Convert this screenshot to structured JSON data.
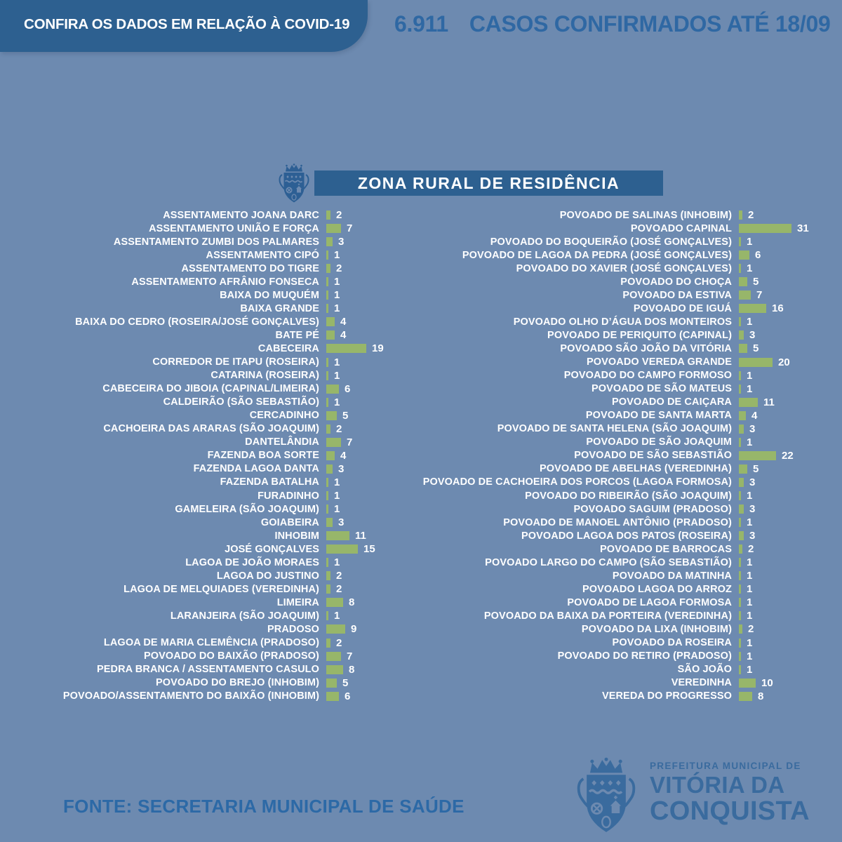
{
  "banner": {
    "text": "CONFIRA OS DADOS EM RELAÇÃO À COVID-19"
  },
  "confirmed": {
    "count": "6.911",
    "label": "CASOS CONFIRMADOS ATÉ 18/09"
  },
  "section_title": "ZONA RURAL DE RESIDÊNCIA",
  "footer": {
    "source": "FONTE: SECRETARIA MUNICIPAL DE SAÚDE",
    "logo": {
      "line1": "PREFEITURA MUNICIPAL DE",
      "line2": "VITÓRIA DA",
      "line3": "CONQUISTA"
    }
  },
  "icons": {
    "section_crest": "coat-of-arms-icon",
    "footer_crest": "coat-of-arms-icon"
  },
  "colors": {
    "background": "#6d8ab0",
    "panel_blue": "#2d6090",
    "headline_blue": "#2f68a3",
    "bar_green": "#97b66a",
    "text_white": "#ffffff",
    "logo_blue": "#3a6b9e"
  },
  "chart_data": {
    "type": "bar",
    "orientation": "horizontal",
    "title": "ZONA RURAL DE RESIDÊNCIA",
    "grid": false,
    "legend": false,
    "columns": [
      {
        "rows": [
          {
            "label": "ASSENTAMENTO JOANA DARC",
            "value": 2
          },
          {
            "label": "ASSENTAMENTO UNIÃO E FORÇA",
            "value": 7
          },
          {
            "label": "ASSENTAMENTO ZUMBI DOS PALMARES",
            "value": 3
          },
          {
            "label": "ASSENTAMENTO CIPÓ",
            "value": 1
          },
          {
            "label": "ASSENTAMENTO DO TIGRE",
            "value": 2
          },
          {
            "label": "ASSENTAMENTO AFRÂNIO FONSECA",
            "value": 1
          },
          {
            "label": "BAIXA DO MUQUÉM",
            "value": 1
          },
          {
            "label": "BAIXA GRANDE",
            "value": 1
          },
          {
            "label": "BAIXA DO CEDRO (ROSEIRA/JOSÉ GONÇALVES)",
            "value": 4
          },
          {
            "label": "BATE PÉ",
            "value": 4
          },
          {
            "label": "CABECEIRA",
            "value": 19
          },
          {
            "label": "CORREDOR DE ITAPU (ROSEIRA)",
            "value": 1
          },
          {
            "label": "CATARINA (ROSEIRA)",
            "value": 1
          },
          {
            "label": "CABECEIRA DO JIBOIA (CAPINAL/LIMEIRA)",
            "value": 6
          },
          {
            "label": "CALDEIRÃO (SÃO SEBASTIÃO)",
            "value": 1
          },
          {
            "label": "CERCADINHO",
            "value": 5
          },
          {
            "label": "CACHOEIRA DAS ARARAS (SÃO JOAQUIM)",
            "value": 2
          },
          {
            "label": "DANTELÂNDIA",
            "value": 7
          },
          {
            "label": "FAZENDA BOA SORTE",
            "value": 4
          },
          {
            "label": "FAZENDA LAGOA DANTA",
            "value": 3
          },
          {
            "label": "FAZENDA BATALHA",
            "value": 1
          },
          {
            "label": "FURADINHO",
            "value": 1
          },
          {
            "label": "GAMELEIRA (SÃO JOAQUIM)",
            "value": 1
          },
          {
            "label": "GOIABEIRA",
            "value": 3
          },
          {
            "label": "INHOBIM",
            "value": 11
          },
          {
            "label": "JOSÉ GONÇALVES",
            "value": 15
          },
          {
            "label": "LAGOA DE JOÃO MORAES",
            "value": 1
          },
          {
            "label": "LAGOA DO JUSTINO",
            "value": 2
          },
          {
            "label": "LAGOA DE MELQUIADES (VEREDINHA)",
            "value": 2
          },
          {
            "label": "LIMEIRA",
            "value": 8
          },
          {
            "label": "LARANJEIRA (SÃO JOAQUIM)",
            "value": 1
          },
          {
            "label": "PRADOSO",
            "value": 9
          },
          {
            "label": "LAGOA DE MARIA CLEMÊNCIA (PRADOSO)",
            "value": 2
          },
          {
            "label": "POVOADO DO BAIXÃO (PRADOSO)",
            "value": 7
          },
          {
            "label": "PEDRA BRANCA / ASSENTAMENTO CASULO",
            "value": 8
          },
          {
            "label": "POVOADO DO BREJO (INHOBIM)",
            "value": 5
          },
          {
            "label": "POVOADO/ASSENTAMENTO DO BAIXÃO (INHOBIM)",
            "value": 6
          }
        ]
      },
      {
        "rows": [
          {
            "label": "POVOADO DE SALINAS (INHOBIM)",
            "value": 2
          },
          {
            "label": "POVOADO CAPINAL",
            "value": 31
          },
          {
            "label": "POVOADO DO BOQUEIRÃO (JOSÉ GONÇALVES)",
            "value": 1
          },
          {
            "label": "POVOADO DE LAGOA DA PEDRA (JOSÉ GONÇALVES)",
            "value": 6
          },
          {
            "label": "POVOADO DO XAVIER (JOSÉ GONÇALVES)",
            "value": 1
          },
          {
            "label": "POVOADO DO CHOÇA",
            "value": 5
          },
          {
            "label": "POVOADO DA ESTIVA",
            "value": 7
          },
          {
            "label": "POVOADO DE IGUÁ",
            "value": 16
          },
          {
            "label": "POVOADO OLHO D’ÁGUA DOS MONTEIROS",
            "value": 1
          },
          {
            "label": "POVOADO DE PERIQUITO (CAPINAL)",
            "value": 3
          },
          {
            "label": "POVOADO SÃO JOÃO DA VITÓRIA",
            "value": 5
          },
          {
            "label": "POVOADO VEREDA GRANDE",
            "value": 20
          },
          {
            "label": "POVOADO DO CAMPO FORMOSO",
            "value": 1
          },
          {
            "label": "POVOADO DE SÃO MATEUS",
            "value": 1
          },
          {
            "label": "POVOADO DE CAIÇARA",
            "value": 11
          },
          {
            "label": "POVOADO DE SANTA MARTA",
            "value": 4
          },
          {
            "label": "POVOADO DE SANTA HELENA (SÃO JOAQUIM)",
            "value": 3
          },
          {
            "label": "POVOADO DE SÃO JOAQUIM",
            "value": 1
          },
          {
            "label": "POVOADO DE SÃO SEBASTIÃO",
            "value": 22
          },
          {
            "label": "POVOADO DE ABELHAS (VEREDINHA)",
            "value": 5
          },
          {
            "label": "POVOADO DE CACHOEIRA DOS PORCOS (LAGOA FORMOSA)",
            "value": 3
          },
          {
            "label": "POVOADO DO RIBEIRÃO (SÃO JOAQUIM)",
            "value": 1
          },
          {
            "label": "POVOADO SAGUIM (PRADOSO)",
            "value": 3
          },
          {
            "label": "POVOADO DE MANOEL ANTÔNIO (PRADOSO)",
            "value": 1
          },
          {
            "label": "POVOADO LAGOA DOS PATOS (ROSEIRA)",
            "value": 3
          },
          {
            "label": "POVOADO DE BARROCAS",
            "value": 2
          },
          {
            "label": "POVOADO LARGO DO CAMPO (SÃO SEBASTIÃO)",
            "value": 1
          },
          {
            "label": "POVOADO DA MATINHA",
            "value": 1
          },
          {
            "label": "POVOADO LAGOA DO ARROZ",
            "value": 1
          },
          {
            "label": "POVOADO DE LAGOA FORMOSA",
            "value": 1
          },
          {
            "label": "POVOADO DA BAIXA DA PORTEIRA (VEREDINHA)",
            "value": 1
          },
          {
            "label": "POVOADO DA LIXA (INHOBIM)",
            "value": 2
          },
          {
            "label": "POVOADO DA ROSEIRA",
            "value": 1
          },
          {
            "label": "POVOADO DO RETIRO (PRADOSO)",
            "value": 1
          },
          {
            "label": "SÃO JOÃO",
            "value": 1
          },
          {
            "label": "VEREDINHA",
            "value": 10
          },
          {
            "label": "VEREDA DO PROGRESSO",
            "value": 8
          }
        ]
      }
    ]
  }
}
